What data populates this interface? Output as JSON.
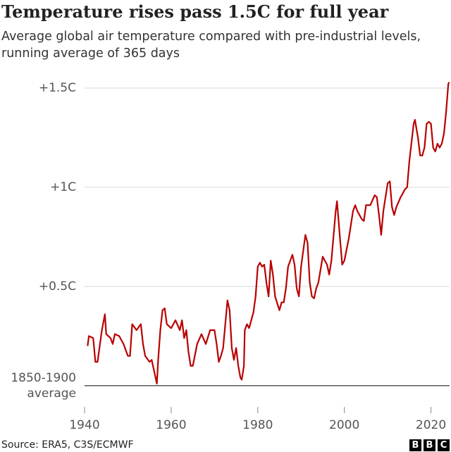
{
  "chart_data": {
    "type": "line",
    "title": "Temperature rises pass 1.5C for full year",
    "subtitle": "Average global air temperature compared with pre-industrial levels, running average of 365 days",
    "source": "Source: ERA5, C3S/ECMWF",
    "color": "#b80000",
    "x": [
      1940.7,
      1941,
      1942,
      1942.5,
      1943,
      1944,
      1944.7,
      1945,
      1946,
      1946.5,
      1947,
      1948,
      1949,
      1950,
      1950.5,
      1951,
      1952,
      1953,
      1953.5,
      1954,
      1955,
      1955.5,
      1956,
      1956.7,
      1957,
      1957.5,
      1958,
      1958.5,
      1959,
      1960,
      1961,
      1962,
      1962.5,
      1963,
      1963.5,
      1964,
      1964.5,
      1965,
      1966,
      1967,
      1968,
      1969,
      1970,
      1970.5,
      1971,
      1971.5,
      1972,
      1972.5,
      1973,
      1973.5,
      1974,
      1974.5,
      1975,
      1975.5,
      1976,
      1976.3,
      1976.8,
      1977,
      1977.5,
      1978,
      1978.5,
      1979,
      1979.5,
      1980,
      1980.5,
      1981,
      1981.5,
      1982,
      1982.5,
      1983,
      1983.5,
      1984,
      1985,
      1985.5,
      1986,
      1986.5,
      1987,
      1988,
      1988.5,
      1989,
      1989.5,
      1990,
      1991,
      1991.5,
      1992,
      1992.5,
      1993,
      1993.5,
      1994,
      1995,
      1996,
      1996.5,
      1997,
      1998,
      1998.3,
      1999,
      1999.5,
      2000,
      2001,
      2002,
      2002.5,
      2003,
      2004,
      2004.5,
      2005,
      2006,
      2007,
      2007.5,
      2008,
      2008.5,
      2009,
      2010,
      2010.5,
      2011,
      2011.5,
      2012,
      2013,
      2014,
      2014.5,
      2015,
      2016,
      2016.3,
      2017,
      2017.5,
      2018,
      2018.5,
      2019,
      2019.5,
      2020,
      2020.5,
      2021,
      2021.5,
      2022,
      2022.5,
      2023,
      2023.5,
      2024,
      2024.2
    ],
    "values": [
      0.2,
      0.25,
      0.24,
      0.12,
      0.12,
      0.28,
      0.36,
      0.26,
      0.24,
      0.21,
      0.26,
      0.25,
      0.21,
      0.15,
      0.15,
      0.31,
      0.28,
      0.31,
      0.21,
      0.15,
      0.12,
      0.13,
      0.08,
      0.01,
      0.13,
      0.28,
      0.38,
      0.39,
      0.31,
      0.29,
      0.33,
      0.28,
      0.33,
      0.24,
      0.28,
      0.17,
      0.1,
      0.1,
      0.21,
      0.26,
      0.21,
      0.28,
      0.28,
      0.21,
      0.12,
      0.15,
      0.19,
      0.31,
      0.43,
      0.38,
      0.19,
      0.13,
      0.19,
      0.1,
      0.04,
      0.03,
      0.1,
      0.28,
      0.31,
      0.29,
      0.33,
      0.37,
      0.45,
      0.6,
      0.62,
      0.6,
      0.61,
      0.52,
      0.45,
      0.63,
      0.56,
      0.45,
      0.38,
      0.42,
      0.42,
      0.49,
      0.6,
      0.66,
      0.61,
      0.49,
      0.45,
      0.6,
      0.76,
      0.72,
      0.52,
      0.45,
      0.44,
      0.49,
      0.52,
      0.65,
      0.61,
      0.56,
      0.63,
      0.88,
      0.93,
      0.74,
      0.61,
      0.63,
      0.74,
      0.88,
      0.91,
      0.88,
      0.84,
      0.83,
      0.91,
      0.91,
      0.96,
      0.95,
      0.86,
      0.76,
      0.88,
      1.02,
      1.03,
      0.9,
      0.86,
      0.9,
      0.95,
      0.99,
      1.0,
      1.13,
      1.32,
      1.34,
      1.25,
      1.16,
      1.16,
      1.2,
      1.32,
      1.33,
      1.32,
      1.2,
      1.18,
      1.22,
      1.2,
      1.22,
      1.27,
      1.38,
      1.52,
      1.53
    ],
    "xlim": [
      1940,
      2024.3
    ],
    "ylim": [
      -0.1,
      1.55
    ],
    "xticks": [
      1940,
      1960,
      1980,
      2000,
      2020
    ],
    "yticks": [
      {
        "value": 0,
        "label": "1850-1900 average"
      },
      {
        "value": 0.5,
        "label": "+0.5C"
      },
      {
        "value": 1,
        "label": "+1C"
      },
      {
        "value": 1.5,
        "label": "+1.5C"
      }
    ],
    "grid": true
  },
  "logo": [
    "B",
    "B",
    "C"
  ]
}
